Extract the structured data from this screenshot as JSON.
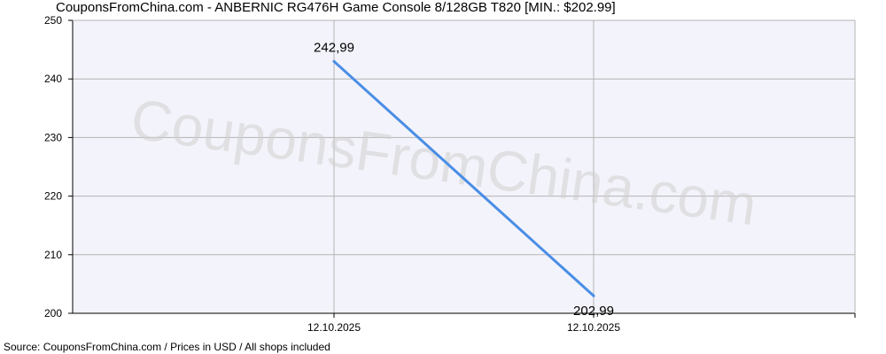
{
  "title": "CouponsFromChina.com - ANBERNIC RG476H Game Console 8/128GB T820 [MIN.: $202.99]",
  "source": "Source: CouponsFromChina.com / Prices in USD / All shops included",
  "watermark": "CouponsFromChina.com",
  "colors": {
    "plot_background": "#f3f3fb",
    "grid": "#b4b4b4",
    "line": "#4a8ee6",
    "watermark": "#cfcfcf"
  },
  "chart_data": {
    "type": "line",
    "title": "CouponsFromChina.com - ANBERNIC RG476H Game Console 8/128GB T820 [MIN.: $202.99]",
    "xlabel": "",
    "ylabel": "",
    "ylim": [
      200,
      250
    ],
    "yticks": [
      200,
      210,
      220,
      230,
      240,
      250
    ],
    "xticks": [
      "12.10.2025",
      "12.10.2025"
    ],
    "grid": true,
    "legend": "none",
    "series": [
      {
        "points": [
          {
            "x": "12.10.2025",
            "y": 242.99,
            "label": "242,99"
          },
          {
            "x": "12.10.2025",
            "y": 202.99,
            "label": "202,99"
          }
        ]
      }
    ]
  }
}
